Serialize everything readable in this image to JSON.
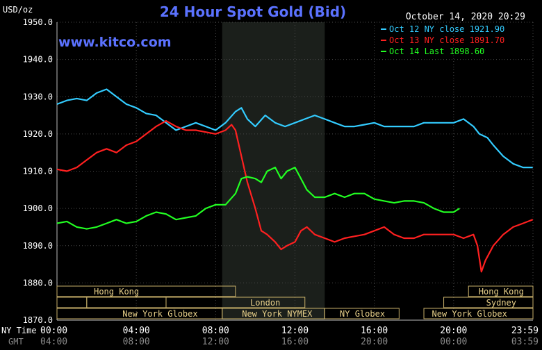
{
  "chart_data": {
    "type": "line",
    "title": "24 Hour Spot Gold (Bid)",
    "ylabel": "USD/oz",
    "watermark": "www.kitco.com",
    "date_time": "October 14, 2020 20:29",
    "ylim": [
      1870,
      1950
    ],
    "yticks": [
      "1950.0",
      "1940.0",
      "1930.0",
      "1920.0",
      "1910.0",
      "1900.0",
      "1890.0",
      "1880.0",
      "1870.0"
    ],
    "x_range_hours": [
      0,
      24
    ],
    "xticks_ny": [
      "00:00",
      "04:00",
      "08:00",
      "12:00",
      "16:00",
      "20:00",
      "23:59"
    ],
    "xticks_gmt": [
      "04:00",
      "08:00",
      "12:00",
      "16:00",
      "20:00",
      "00:00",
      "03:59"
    ],
    "x_row_label_ny": "NY Time",
    "x_row_label_gmt": "GMT",
    "shaded_session_hours": [
      8.33,
      13.5
    ],
    "grid": true,
    "legend": "top-right",
    "series": [
      {
        "name": "Oct 12 NY close 1921.90",
        "color": "#33ccff",
        "points": [
          [
            0,
            1928
          ],
          [
            0.5,
            1929
          ],
          [
            1,
            1929.5
          ],
          [
            1.5,
            1929
          ],
          [
            2,
            1931
          ],
          [
            2.5,
            1932
          ],
          [
            3,
            1930
          ],
          [
            3.5,
            1928
          ],
          [
            4,
            1927
          ],
          [
            4.5,
            1925.5
          ],
          [
            5,
            1925
          ],
          [
            5.5,
            1923
          ],
          [
            6,
            1921
          ],
          [
            6.5,
            1922
          ],
          [
            7,
            1923
          ],
          [
            7.5,
            1922
          ],
          [
            8,
            1921
          ],
          [
            8.5,
            1923
          ],
          [
            9,
            1926
          ],
          [
            9.3,
            1927
          ],
          [
            9.6,
            1924
          ],
          [
            10,
            1922
          ],
          [
            10.5,
            1925
          ],
          [
            11,
            1923
          ],
          [
            11.5,
            1922
          ],
          [
            12,
            1923
          ],
          [
            12.5,
            1924
          ],
          [
            13,
            1925
          ],
          [
            13.5,
            1924
          ],
          [
            14,
            1923
          ],
          [
            14.5,
            1922
          ],
          [
            15,
            1922
          ],
          [
            15.5,
            1922.5
          ],
          [
            16,
            1923
          ],
          [
            16.5,
            1922
          ],
          [
            17,
            1922
          ],
          [
            17.5,
            1922
          ],
          [
            18,
            1922
          ],
          [
            18.5,
            1923
          ],
          [
            19,
            1923
          ],
          [
            19.5,
            1923
          ],
          [
            20,
            1923
          ],
          [
            20.5,
            1924
          ],
          [
            21,
            1922
          ],
          [
            21.3,
            1920
          ],
          [
            21.7,
            1919
          ],
          [
            22,
            1917
          ],
          [
            22.5,
            1914
          ],
          [
            23,
            1912
          ],
          [
            23.5,
            1911
          ],
          [
            23.99,
            1911
          ]
        ]
      },
      {
        "name": "Oct 13 NY close 1891.70",
        "color": "#ff2020",
        "points": [
          [
            0,
            1910.5
          ],
          [
            0.5,
            1910
          ],
          [
            1,
            1911
          ],
          [
            1.5,
            1913
          ],
          [
            2,
            1915
          ],
          [
            2.5,
            1916
          ],
          [
            3,
            1915
          ],
          [
            3.5,
            1917
          ],
          [
            4,
            1918
          ],
          [
            4.5,
            1920
          ],
          [
            5,
            1922
          ],
          [
            5.5,
            1923.5
          ],
          [
            6,
            1922
          ],
          [
            6.5,
            1921
          ],
          [
            7,
            1921
          ],
          [
            7.5,
            1920.5
          ],
          [
            8,
            1920
          ],
          [
            8.5,
            1921
          ],
          [
            8.8,
            1922.5
          ],
          [
            9,
            1921
          ],
          [
            9.3,
            1914
          ],
          [
            9.6,
            1907
          ],
          [
            10,
            1900
          ],
          [
            10.3,
            1894
          ],
          [
            10.6,
            1893
          ],
          [
            11,
            1891
          ],
          [
            11.3,
            1889
          ],
          [
            11.6,
            1890
          ],
          [
            12,
            1891
          ],
          [
            12.3,
            1894
          ],
          [
            12.6,
            1895
          ],
          [
            13,
            1893
          ],
          [
            13.5,
            1892
          ],
          [
            14,
            1891
          ],
          [
            14.5,
            1892
          ],
          [
            15,
            1892.5
          ],
          [
            15.5,
            1893
          ],
          [
            16,
            1894
          ],
          [
            16.5,
            1895
          ],
          [
            17,
            1893
          ],
          [
            17.5,
            1892
          ],
          [
            18,
            1892
          ],
          [
            18.5,
            1893
          ],
          [
            19,
            1893
          ],
          [
            19.5,
            1893
          ],
          [
            20,
            1893
          ],
          [
            20.5,
            1892
          ],
          [
            21,
            1893
          ],
          [
            21.2,
            1890
          ],
          [
            21.4,
            1883
          ],
          [
            21.6,
            1886
          ],
          [
            22,
            1890
          ],
          [
            22.5,
            1893
          ],
          [
            23,
            1895
          ],
          [
            23.5,
            1896
          ],
          [
            23.99,
            1897
          ]
        ]
      },
      {
        "name": "Oct 14 Last 1898.60",
        "color": "#22ff22",
        "points": [
          [
            0,
            1896
          ],
          [
            0.5,
            1896.5
          ],
          [
            1,
            1895
          ],
          [
            1.5,
            1894.5
          ],
          [
            2,
            1895
          ],
          [
            2.5,
            1896
          ],
          [
            3,
            1897
          ],
          [
            3.5,
            1896
          ],
          [
            4,
            1896.5
          ],
          [
            4.5,
            1898
          ],
          [
            5,
            1899
          ],
          [
            5.5,
            1898.5
          ],
          [
            6,
            1897
          ],
          [
            6.5,
            1897.5
          ],
          [
            7,
            1898
          ],
          [
            7.5,
            1900
          ],
          [
            8,
            1901
          ],
          [
            8.5,
            1901
          ],
          [
            9,
            1904
          ],
          [
            9.3,
            1908
          ],
          [
            9.6,
            1908.5
          ],
          [
            10,
            1908
          ],
          [
            10.3,
            1907
          ],
          [
            10.6,
            1910
          ],
          [
            11,
            1911
          ],
          [
            11.3,
            1908
          ],
          [
            11.6,
            1910
          ],
          [
            12,
            1911
          ],
          [
            12.3,
            1908
          ],
          [
            12.6,
            1905
          ],
          [
            13,
            1903
          ],
          [
            13.5,
            1903
          ],
          [
            14,
            1904
          ],
          [
            14.5,
            1903
          ],
          [
            15,
            1904
          ],
          [
            15.5,
            1904
          ],
          [
            16,
            1902.5
          ],
          [
            16.5,
            1902
          ],
          [
            17,
            1901.5
          ],
          [
            17.5,
            1902
          ],
          [
            18,
            1902
          ],
          [
            18.5,
            1901.5
          ],
          [
            19,
            1900
          ],
          [
            19.5,
            1899
          ],
          [
            20,
            1899
          ],
          [
            20.3,
            1900
          ]
        ]
      }
    ],
    "session_rows": [
      [
        {
          "label": "Hong Kong",
          "start": 0,
          "end": 9,
          "text_at": 3
        },
        {
          "label": "Hong Kong",
          "start": 20.75,
          "end": 24,
          "text_at": 22.4
        }
      ],
      [
        {
          "label": "",
          "start": 0,
          "end": 1.5
        },
        {
          "label": "",
          "start": 1.5,
          "end": 5.5
        },
        {
          "label": "London",
          "start": 5.5,
          "end": 12.5,
          "text_at": 10.5
        },
        {
          "label": "Sydney",
          "start": 19.5,
          "end": 24,
          "text_at": 22.4
        }
      ],
      [
        {
          "label": "New York Globex",
          "start": 0,
          "end": 8.33,
          "text_at": 5.2
        },
        {
          "label": "New York NYMEX",
          "start": 8.33,
          "end": 13.5,
          "text_at": 11.1
        },
        {
          "label": "NY Globex",
          "start": 13.5,
          "end": 17.25,
          "text_at": 15.4
        },
        {
          "label": "New York Globex",
          "start": 18.5,
          "end": 24,
          "text_at": 20.8
        }
      ]
    ]
  }
}
